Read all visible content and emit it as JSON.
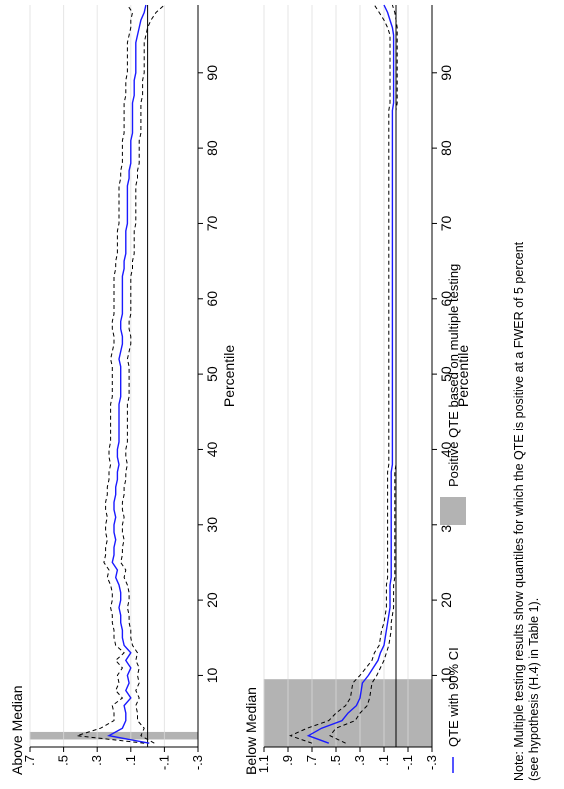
{
  "chart_data": [
    {
      "type": "line",
      "title": "Above Median",
      "xlabel": "Percentile",
      "ylabel": "",
      "xlim": [
        0.5,
        99
      ],
      "ylim": [
        -0.3,
        0.7
      ],
      "xticks": [
        10,
        20,
        30,
        40,
        50,
        60,
        70,
        80,
        90
      ],
      "yticks": [
        -0.3,
        -0.1,
        0.1,
        0.3,
        0.5,
        0.7
      ],
      "ytick_labels": [
        "-.3",
        "-.1",
        ".1",
        ".3",
        ".5",
        ".7"
      ],
      "reference_line": 0,
      "grid": true,
      "positive_qte_bands": [
        [
          1.5,
          2.5
        ]
      ],
      "x": [
        1,
        2,
        3,
        4,
        5,
        6,
        7,
        8,
        9,
        10,
        11,
        12,
        13,
        14,
        15,
        16,
        17,
        18,
        19,
        20,
        21,
        22,
        23,
        24,
        25,
        26,
        27,
        28,
        29,
        30,
        31,
        32,
        33,
        34,
        35,
        36,
        37,
        38,
        39,
        40,
        41,
        42,
        43,
        44,
        45,
        46,
        47,
        48,
        49,
        50,
        51,
        52,
        53,
        54,
        55,
        56,
        57,
        58,
        59,
        60,
        61,
        62,
        63,
        64,
        65,
        66,
        67,
        68,
        69,
        70,
        71,
        72,
        73,
        74,
        75,
        76,
        77,
        78,
        79,
        80,
        81,
        82,
        83,
        84,
        85,
        86,
        87,
        88,
        89,
        90,
        91,
        92,
        93,
        94,
        95,
        96,
        97,
        98,
        99
      ],
      "series": [
        {
          "name": "QTE with 90% CI",
          "values": [
            -0.01,
            0.23,
            0.15,
            0.13,
            0.13,
            0.14,
            0.1,
            0.13,
            0.11,
            0.12,
            0.1,
            0.13,
            0.1,
            0.14,
            0.15,
            0.15,
            0.16,
            0.16,
            0.17,
            0.16,
            0.16,
            0.17,
            0.19,
            0.18,
            0.21,
            0.2,
            0.2,
            0.19,
            0.2,
            0.2,
            0.19,
            0.2,
            0.2,
            0.19,
            0.19,
            0.18,
            0.18,
            0.17,
            0.18,
            0.18,
            0.17,
            0.17,
            0.17,
            0.17,
            0.17,
            0.17,
            0.16,
            0.16,
            0.16,
            0.16,
            0.16,
            0.17,
            0.16,
            0.15,
            0.15,
            0.16,
            0.16,
            0.15,
            0.15,
            0.15,
            0.15,
            0.15,
            0.15,
            0.14,
            0.14,
            0.13,
            0.13,
            0.13,
            0.13,
            0.12,
            0.12,
            0.12,
            0.12,
            0.12,
            0.12,
            0.11,
            0.11,
            0.1,
            0.1,
            0.1,
            0.1,
            0.09,
            0.09,
            0.09,
            0.09,
            0.09,
            0.08,
            0.08,
            0.08,
            0.07,
            0.07,
            0.07,
            0.07,
            0.07,
            0.06,
            0.05,
            0.04,
            0.02,
            0.01
          ],
          "lower": [
            -0.04,
            0.04,
            0.02,
            0.06,
            0.06,
            0.07,
            0.05,
            0.07,
            0.05,
            0.06,
            0.05,
            0.07,
            0.06,
            0.09,
            0.1,
            0.1,
            0.11,
            0.11,
            0.12,
            0.11,
            0.11,
            0.12,
            0.14,
            0.13,
            0.16,
            0.15,
            0.15,
            0.14,
            0.15,
            0.15,
            0.14,
            0.15,
            0.15,
            0.14,
            0.14,
            0.13,
            0.13,
            0.12,
            0.13,
            0.13,
            0.12,
            0.12,
            0.12,
            0.12,
            0.12,
            0.12,
            0.11,
            0.11,
            0.11,
            0.11,
            0.11,
            0.12,
            0.11,
            0.1,
            0.1,
            0.11,
            0.11,
            0.1,
            0.1,
            0.1,
            0.1,
            0.1,
            0.1,
            0.09,
            0.09,
            0.08,
            0.08,
            0.08,
            0.08,
            0.07,
            0.07,
            0.07,
            0.07,
            0.07,
            0.07,
            0.06,
            0.06,
            0.05,
            0.05,
            0.05,
            0.05,
            0.04,
            0.04,
            0.04,
            0.04,
            0.04,
            0.03,
            0.03,
            0.03,
            0.02,
            0.02,
            0.02,
            0.02,
            0.02,
            0.01,
            0.0,
            -0.02,
            -0.05,
            -0.1
          ],
          "upper": [
            0.02,
            0.42,
            0.28,
            0.2,
            0.2,
            0.21,
            0.15,
            0.19,
            0.17,
            0.18,
            0.15,
            0.19,
            0.14,
            0.19,
            0.2,
            0.2,
            0.21,
            0.21,
            0.22,
            0.21,
            0.21,
            0.22,
            0.24,
            0.23,
            0.26,
            0.25,
            0.25,
            0.24,
            0.25,
            0.25,
            0.24,
            0.25,
            0.25,
            0.24,
            0.24,
            0.23,
            0.23,
            0.22,
            0.23,
            0.23,
            0.22,
            0.22,
            0.22,
            0.22,
            0.22,
            0.22,
            0.21,
            0.21,
            0.21,
            0.21,
            0.21,
            0.22,
            0.21,
            0.2,
            0.2,
            0.21,
            0.21,
            0.2,
            0.2,
            0.2,
            0.2,
            0.2,
            0.2,
            0.19,
            0.19,
            0.18,
            0.18,
            0.18,
            0.18,
            0.17,
            0.17,
            0.17,
            0.17,
            0.17,
            0.17,
            0.16,
            0.16,
            0.15,
            0.15,
            0.15,
            0.15,
            0.14,
            0.14,
            0.14,
            0.14,
            0.14,
            0.13,
            0.13,
            0.13,
            0.12,
            0.12,
            0.12,
            0.12,
            0.12,
            0.11,
            0.1,
            0.1,
            0.09,
            0.12
          ]
        }
      ]
    },
    {
      "type": "line",
      "title": "Below Median",
      "xlabel": "Percentile",
      "ylabel": "",
      "xlim": [
        0.5,
        99
      ],
      "ylim": [
        -0.3,
        1.1
      ],
      "xticks": [
        10,
        20,
        30,
        40,
        50,
        60,
        70,
        80,
        90
      ],
      "yticks": [
        -0.3,
        -0.1,
        0.1,
        0.3,
        0.5,
        0.7,
        0.9,
        1.1
      ],
      "ytick_labels": [
        "-.3",
        "-.1",
        ".1",
        ".3",
        ".5",
        ".7",
        ".9",
        "1.1"
      ],
      "reference_line": 0,
      "grid": true,
      "positive_qte_bands": [
        [
          0.5,
          9.5
        ]
      ],
      "x": [
        1,
        2,
        3,
        4,
        5,
        6,
        7,
        8,
        9,
        10,
        11,
        12,
        13,
        14,
        15,
        16,
        17,
        18,
        19,
        20,
        21,
        22,
        23,
        24,
        25,
        26,
        27,
        28,
        29,
        30,
        31,
        32,
        33,
        34,
        35,
        36,
        37,
        38,
        39,
        40,
        41,
        42,
        43,
        44,
        45,
        46,
        47,
        48,
        49,
        50,
        51,
        52,
        53,
        54,
        55,
        56,
        57,
        58,
        59,
        60,
        61,
        62,
        63,
        64,
        65,
        66,
        67,
        68,
        69,
        70,
        71,
        72,
        73,
        74,
        75,
        76,
        77,
        78,
        79,
        80,
        81,
        82,
        83,
        84,
        85,
        86,
        87,
        88,
        89,
        90,
        91,
        92,
        93,
        94,
        95,
        96,
        97,
        98,
        99
      ],
      "series": [
        {
          "name": "QTE with 90% CI",
          "values": [
            0.56,
            0.73,
            0.62,
            0.45,
            0.4,
            0.33,
            0.3,
            0.29,
            0.28,
            0.23,
            0.19,
            0.15,
            0.13,
            0.1,
            0.09,
            0.08,
            0.07,
            0.06,
            0.05,
            0.05,
            0.05,
            0.05,
            0.04,
            0.04,
            0.04,
            0.04,
            0.04,
            0.04,
            0.04,
            0.04,
            0.04,
            0.04,
            0.04,
            0.04,
            0.04,
            0.04,
            0.04,
            0.03,
            0.03,
            0.03,
            0.03,
            0.03,
            0.03,
            0.03,
            0.03,
            0.03,
            0.03,
            0.03,
            0.03,
            0.03,
            0.03,
            0.03,
            0.03,
            0.03,
            0.03,
            0.03,
            0.03,
            0.03,
            0.03,
            0.03,
            0.03,
            0.03,
            0.03,
            0.03,
            0.03,
            0.03,
            0.03,
            0.03,
            0.03,
            0.03,
            0.03,
            0.03,
            0.03,
            0.03,
            0.03,
            0.03,
            0.03,
            0.03,
            0.03,
            0.03,
            0.03,
            0.03,
            0.03,
            0.03,
            0.03,
            0.02,
            0.02,
            0.02,
            0.02,
            0.02,
            0.02,
            0.02,
            0.02,
            0.02,
            0.02,
            0.03,
            0.05,
            0.07,
            0.1
          ],
          "lower": [
            0.42,
            0.55,
            0.5,
            0.34,
            0.3,
            0.24,
            0.22,
            0.21,
            0.2,
            0.16,
            0.13,
            0.1,
            0.08,
            0.06,
            0.05,
            0.04,
            0.04,
            0.03,
            0.02,
            0.02,
            0.02,
            0.02,
            0.01,
            0.01,
            0.01,
            0.01,
            0.01,
            0.01,
            0.01,
            0.01,
            0.01,
            0.01,
            0.01,
            0.01,
            0.01,
            0.01,
            0.01,
            0.0,
            0.0,
            0.0,
            0.0,
            0.0,
            0.0,
            0.0,
            0.0,
            0.0,
            0.0,
            0.0,
            0.0,
            0.0,
            0.0,
            0.0,
            0.0,
            0.0,
            0.0,
            0.0,
            0.0,
            0.0,
            0.0,
            0.0,
            0.0,
            0.0,
            0.0,
            0.0,
            0.0,
            0.0,
            0.0,
            0.0,
            0.0,
            0.0,
            0.0,
            0.0,
            0.0,
            0.0,
            0.0,
            0.0,
            0.0,
            0.0,
            0.0,
            0.0,
            0.0,
            0.0,
            0.0,
            0.0,
            0.0,
            -0.01,
            -0.01,
            -0.01,
            -0.01,
            -0.01,
            -0.01,
            -0.01,
            -0.01,
            -0.01,
            -0.01,
            -0.01,
            0.0,
            0.01,
            0.03
          ],
          "upper": [
            0.7,
            0.88,
            0.74,
            0.56,
            0.5,
            0.42,
            0.38,
            0.37,
            0.36,
            0.3,
            0.25,
            0.2,
            0.18,
            0.14,
            0.13,
            0.12,
            0.1,
            0.09,
            0.08,
            0.08,
            0.08,
            0.08,
            0.07,
            0.07,
            0.07,
            0.07,
            0.07,
            0.07,
            0.07,
            0.07,
            0.07,
            0.07,
            0.07,
            0.07,
            0.07,
            0.07,
            0.07,
            0.06,
            0.06,
            0.06,
            0.06,
            0.06,
            0.06,
            0.06,
            0.06,
            0.06,
            0.06,
            0.06,
            0.06,
            0.06,
            0.06,
            0.06,
            0.06,
            0.06,
            0.06,
            0.06,
            0.06,
            0.06,
            0.06,
            0.06,
            0.06,
            0.06,
            0.06,
            0.06,
            0.06,
            0.06,
            0.06,
            0.06,
            0.06,
            0.06,
            0.06,
            0.06,
            0.06,
            0.06,
            0.06,
            0.06,
            0.06,
            0.06,
            0.06,
            0.06,
            0.06,
            0.06,
            0.06,
            0.06,
            0.06,
            0.05,
            0.05,
            0.05,
            0.05,
            0.05,
            0.05,
            0.05,
            0.05,
            0.05,
            0.05,
            0.07,
            0.1,
            0.14,
            0.18
          ]
        }
      ]
    }
  ],
  "legend": {
    "line_label": "QTE with 90% CI",
    "band_label": "Positive QTE based on multiple testing"
  },
  "note": {
    "line1": "Note: Multiple testing results show quantiles for which the QTE is positive at a FWER of 5 percent",
    "line2": "(see hypothesis (H.4) in Table 1)."
  },
  "colors": {
    "qte_line": "#1a1aff",
    "ci_line": "#000000",
    "band": "#b3b3b3",
    "grid": "#e6e6e6"
  }
}
